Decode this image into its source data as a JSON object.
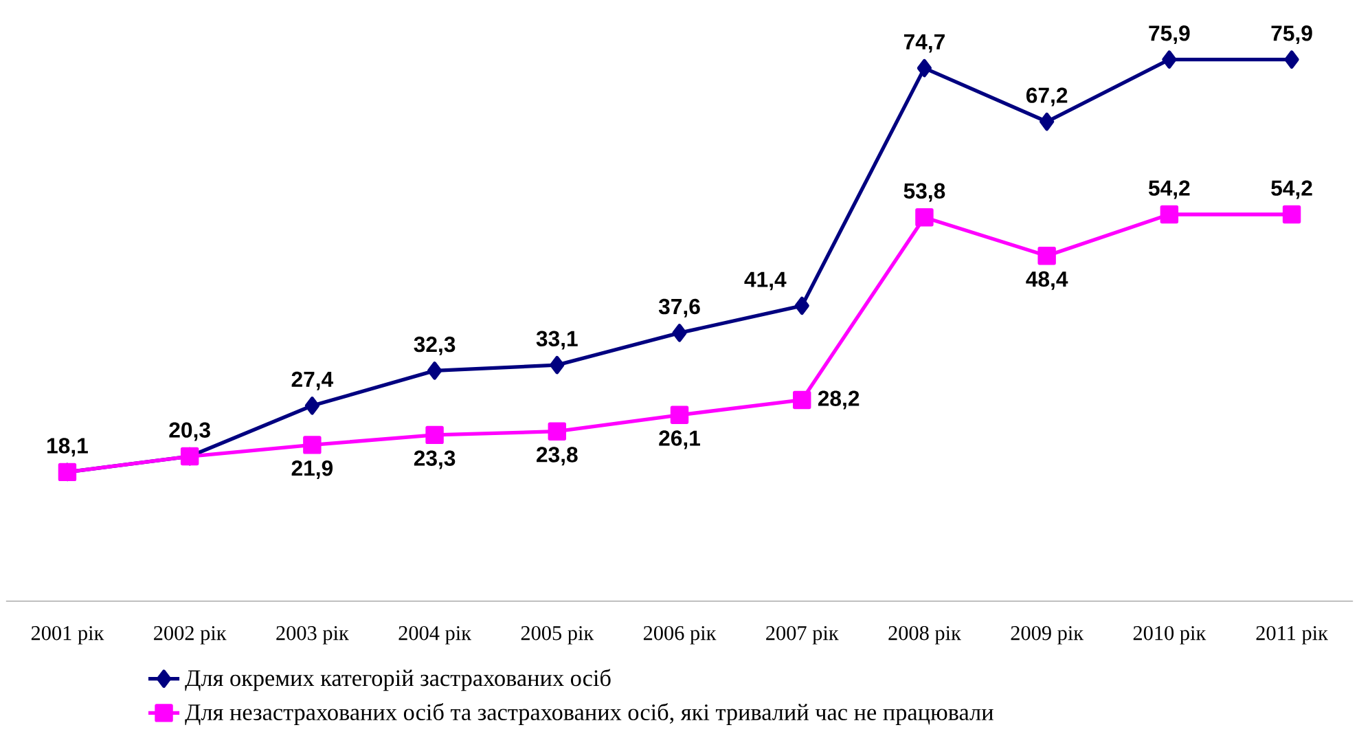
{
  "chart_data": {
    "type": "line",
    "categories": [
      "2001 рік",
      "2002 рік",
      "2003 рік",
      "2004 рік",
      "2005 рік",
      "2006 рік",
      "2007 рік",
      "2008 рік",
      "2009 рік",
      "2010 рік",
      "2011 рік"
    ],
    "series": [
      {
        "name": "Для окремих категорій застрахованих осіб",
        "color": "#000080",
        "marker": "diamond",
        "values": [
          18.1,
          20.3,
          27.4,
          32.3,
          33.1,
          37.6,
          41.4,
          74.7,
          67.2,
          75.9,
          75.9
        ],
        "value_labels": [
          "18,1",
          "20,3",
          "27,4",
          "32,3",
          "33,1",
          "37,6",
          "41,4",
          "74,7",
          "67,2",
          "75,9",
          "75,9"
        ]
      },
      {
        "name": "Для незастрахованих осіб та застрахованих осіб, які тривалий час не працювали",
        "color": "#ff00ff",
        "marker": "square",
        "values": [
          18.1,
          20.3,
          21.9,
          23.3,
          23.8,
          26.1,
          28.2,
          53.8,
          48.4,
          54.2,
          54.2
        ],
        "value_labels": [
          null,
          null,
          "21,9",
          "23,3",
          "23,8",
          "26,1",
          "28,2",
          "53,8",
          "48,4",
          "54,2",
          "54,2"
        ]
      }
    ],
    "legend": "bottom",
    "grid": false
  }
}
